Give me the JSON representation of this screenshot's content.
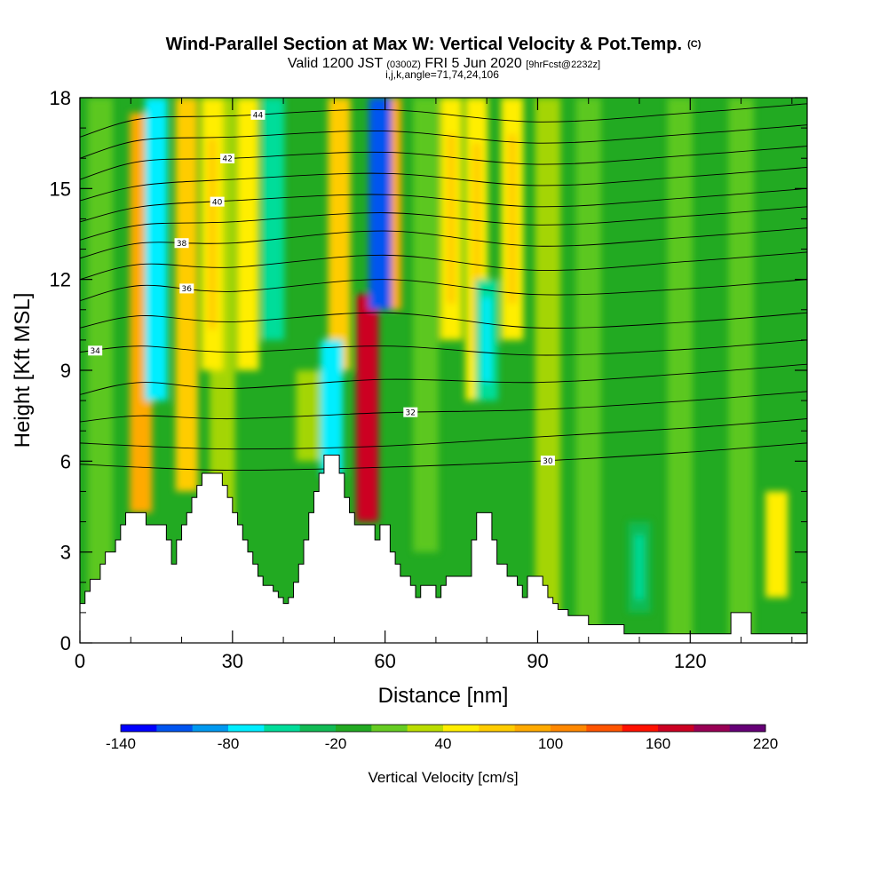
{
  "chart_data": {
    "type": "heatmap",
    "title": "Wind-Parallel Section at Max W: Vertical Velocity & Pot.Temp.",
    "title_suffix": "(C)",
    "subtitle": {
      "valid": "Valid 1200 JST",
      "utc": "(0300Z)",
      "date": "FRI 5 Jun 2020",
      "forecast": "[9hrFcst@2232z]"
    },
    "subtitle2": "i,j,k,angle=71,74,24,106",
    "xlabel": "Distance [nm]",
    "ylabel": "Height [Kft MSL]",
    "xlim": [
      0,
      143
    ],
    "ylim": [
      0,
      18
    ],
    "x_ticks": [
      0,
      30,
      60,
      90,
      120
    ],
    "y_ticks": [
      0,
      3,
      6,
      9,
      12,
      15,
      18
    ],
    "colorbar": {
      "title": "Vertical Velocity [cm/s]",
      "min": -140,
      "max": 220,
      "tick_labels": [
        "-140",
        "-80",
        "-20",
        "40",
        "100",
        "160",
        "220"
      ],
      "colors": [
        "#0000ff",
        "#0055f0",
        "#0099f0",
        "#00eeff",
        "#00dd9a",
        "#11bb55",
        "#22aa22",
        "#66cc22",
        "#bbdd00",
        "#ffee00",
        "#ffcc00",
        "#ffaa00",
        "#ff8800",
        "#ff5500",
        "#ff1100",
        "#cc0022",
        "#990055",
        "#660077"
      ]
    },
    "updrafts": [
      {
        "x": 12,
        "z_bottom": 4.3,
        "z_top": 17.5,
        "w": 90
      },
      {
        "x": 21,
        "z_bottom": 5.0,
        "z_top": 18.0,
        "w": 60
      },
      {
        "x": 26,
        "z_bottom": 9.0,
        "z_top": 18.0,
        "w": 50
      },
      {
        "x": 33,
        "z_bottom": 9.0,
        "z_top": 18.0,
        "w": 45
      },
      {
        "x": 51,
        "z_bottom": 9.0,
        "z_top": 18.0,
        "w": 70
      },
      {
        "x": 56.5,
        "z_bottom": 4.0,
        "z_top": 11.5,
        "w": 170
      },
      {
        "x": 61,
        "z_bottom": 11.0,
        "z_top": 18.0,
        "w": 85
      },
      {
        "x": 73,
        "z_bottom": 10.0,
        "z_top": 18.0,
        "w": 55
      },
      {
        "x": 78,
        "z_bottom": 8.0,
        "z_top": 18.0,
        "w": 50
      },
      {
        "x": 85,
        "z_bottom": 10.0,
        "z_top": 18.0,
        "w": 50
      },
      {
        "x": 137,
        "z_bottom": 1.5,
        "z_top": 5.0,
        "w": 45
      }
    ],
    "downdrafts": [
      {
        "x": 15,
        "z_bottom": 8.0,
        "z_top": 18.0,
        "w": -70
      },
      {
        "x": 38,
        "z_bottom": 10.0,
        "z_top": 18.0,
        "w": -50
      },
      {
        "x": 49.5,
        "z_bottom": 5.5,
        "z_top": 10.0,
        "w": -65
      },
      {
        "x": 59,
        "z_bottom": 11.0,
        "z_top": 18.0,
        "w": -110
      },
      {
        "x": 80,
        "z_bottom": 8.0,
        "z_top": 12.0,
        "w": -60
      },
      {
        "x": 110,
        "z_bottom": 1.0,
        "z_top": 4.0,
        "w": -40
      }
    ],
    "terrain": [
      {
        "x": 0,
        "z": 1.3
      },
      {
        "x": 1,
        "z": 1.7
      },
      {
        "x": 2,
        "z": 2.1
      },
      {
        "x": 4,
        "z": 2.6
      },
      {
        "x": 5,
        "z": 3.0
      },
      {
        "x": 7,
        "z": 3.4
      },
      {
        "x": 8,
        "z": 3.9
      },
      {
        "x": 9,
        "z": 4.3
      },
      {
        "x": 12,
        "z": 4.3
      },
      {
        "x": 13,
        "z": 3.9
      },
      {
        "x": 15,
        "z": 3.9
      },
      {
        "x": 17,
        "z": 3.4
      },
      {
        "x": 18,
        "z": 2.6
      },
      {
        "x": 19,
        "z": 3.4
      },
      {
        "x": 20,
        "z": 3.9
      },
      {
        "x": 21,
        "z": 4.3
      },
      {
        "x": 22,
        "z": 4.8
      },
      {
        "x": 23,
        "z": 5.2
      },
      {
        "x": 24,
        "z": 5.6
      },
      {
        "x": 27,
        "z": 5.6
      },
      {
        "x": 28,
        "z": 5.2
      },
      {
        "x": 29,
        "z": 4.8
      },
      {
        "x": 30,
        "z": 4.3
      },
      {
        "x": 31,
        "z": 3.9
      },
      {
        "x": 32,
        "z": 3.4
      },
      {
        "x": 33,
        "z": 3.0
      },
      {
        "x": 34,
        "z": 2.6
      },
      {
        "x": 35,
        "z": 2.2
      },
      {
        "x": 36,
        "z": 1.9
      },
      {
        "x": 38,
        "z": 1.7
      },
      {
        "x": 39,
        "z": 1.5
      },
      {
        "x": 40,
        "z": 1.3
      },
      {
        "x": 41,
        "z": 1.5
      },
      {
        "x": 42,
        "z": 2.0
      },
      {
        "x": 43,
        "z": 2.6
      },
      {
        "x": 44,
        "z": 3.4
      },
      {
        "x": 45,
        "z": 4.3
      },
      {
        "x": 46,
        "z": 5.0
      },
      {
        "x": 47,
        "z": 5.6
      },
      {
        "x": 48,
        "z": 6.2
      },
      {
        "x": 50,
        "z": 6.2
      },
      {
        "x": 51,
        "z": 5.6
      },
      {
        "x": 52,
        "z": 4.8
      },
      {
        "x": 53,
        "z": 4.3
      },
      {
        "x": 54,
        "z": 3.9
      },
      {
        "x": 56,
        "z": 3.9
      },
      {
        "x": 58,
        "z": 3.4
      },
      {
        "x": 59,
        "z": 3.9
      },
      {
        "x": 61,
        "z": 3.0
      },
      {
        "x": 62,
        "z": 2.6
      },
      {
        "x": 63,
        "z": 2.2
      },
      {
        "x": 65,
        "z": 1.9
      },
      {
        "x": 66,
        "z": 1.5
      },
      {
        "x": 67,
        "z": 1.9
      },
      {
        "x": 70,
        "z": 1.5
      },
      {
        "x": 71,
        "z": 1.9
      },
      {
        "x": 72,
        "z": 2.2
      },
      {
        "x": 74,
        "z": 2.2
      },
      {
        "x": 77,
        "z": 3.4
      },
      {
        "x": 78,
        "z": 4.3
      },
      {
        "x": 80,
        "z": 4.3
      },
      {
        "x": 81,
        "z": 3.4
      },
      {
        "x": 82,
        "z": 2.6
      },
      {
        "x": 84,
        "z": 2.2
      },
      {
        "x": 86,
        "z": 1.9
      },
      {
        "x": 87,
        "z": 1.5
      },
      {
        "x": 88,
        "z": 2.2
      },
      {
        "x": 90,
        "z": 2.2
      },
      {
        "x": 91,
        "z": 1.9
      },
      {
        "x": 92,
        "z": 1.5
      },
      {
        "x": 93,
        "z": 1.3
      },
      {
        "x": 94,
        "z": 1.1
      },
      {
        "x": 96,
        "z": 0.9
      },
      {
        "x": 100,
        "z": 0.6
      },
      {
        "x": 105,
        "z": 0.6
      },
      {
        "x": 107,
        "z": 0.3
      },
      {
        "x": 127,
        "z": 0.3
      },
      {
        "x": 128,
        "z": 1.0
      },
      {
        "x": 131,
        "z": 1.0
      },
      {
        "x": 132,
        "z": 0.3
      },
      {
        "x": 143,
        "z": 0.3
      }
    ],
    "theta_contours": [
      {
        "theta": 30,
        "label": "30",
        "label_x": 92,
        "pts": [
          {
            "x": 0,
            "z": 5.9
          },
          {
            "x": 12,
            "z": 5.8
          },
          {
            "x": 30,
            "z": 5.7
          },
          {
            "x": 60,
            "z": 5.8
          },
          {
            "x": 90,
            "z": 6.0
          },
          {
            "x": 120,
            "z": 6.3
          },
          {
            "x": 143,
            "z": 6.6
          }
        ]
      },
      {
        "x": 0,
        "theta": 31,
        "label": "",
        "label_x": 0,
        "pts": [
          {
            "x": 0,
            "z": 6.6
          },
          {
            "x": 12,
            "z": 6.5
          },
          {
            "x": 30,
            "z": 6.4
          },
          {
            "x": 60,
            "z": 6.5
          },
          {
            "x": 90,
            "z": 6.8
          },
          {
            "x": 120,
            "z": 7.1
          },
          {
            "x": 143,
            "z": 7.4
          }
        ]
      },
      {
        "theta": 32,
        "label": "32",
        "label_x": 65,
        "pts": [
          {
            "x": 0,
            "z": 7.3
          },
          {
            "x": 12,
            "z": 7.5
          },
          {
            "x": 30,
            "z": 7.4
          },
          {
            "x": 60,
            "z": 7.6
          },
          {
            "x": 90,
            "z": 7.7
          },
          {
            "x": 120,
            "z": 8.0
          },
          {
            "x": 143,
            "z": 8.3
          }
        ]
      },
      {
        "theta": 33,
        "label": "",
        "label_x": 0,
        "pts": [
          {
            "x": 0,
            "z": 8.2
          },
          {
            "x": 12,
            "z": 8.6
          },
          {
            "x": 30,
            "z": 8.4
          },
          {
            "x": 60,
            "z": 8.7
          },
          {
            "x": 90,
            "z": 8.6
          },
          {
            "x": 120,
            "z": 8.9
          },
          {
            "x": 143,
            "z": 9.2
          }
        ]
      },
      {
        "theta": 34,
        "label": "34",
        "label_x": 3,
        "pts": [
          {
            "x": 0,
            "z": 9.6
          },
          {
            "x": 12,
            "z": 9.8
          },
          {
            "x": 30,
            "z": 9.6
          },
          {
            "x": 60,
            "z": 9.8
          },
          {
            "x": 90,
            "z": 9.5
          },
          {
            "x": 120,
            "z": 9.7
          },
          {
            "x": 143,
            "z": 10.0
          }
        ]
      },
      {
        "theta": 35,
        "label": "",
        "label_x": 0,
        "pts": [
          {
            "x": 0,
            "z": 10.4
          },
          {
            "x": 12,
            "z": 10.8
          },
          {
            "x": 30,
            "z": 10.6
          },
          {
            "x": 60,
            "z": 10.9
          },
          {
            "x": 90,
            "z": 10.4
          },
          {
            "x": 120,
            "z": 10.6
          },
          {
            "x": 143,
            "z": 10.9
          }
        ]
      },
      {
        "theta": 36,
        "label": "36",
        "label_x": 21,
        "pts": [
          {
            "x": 0,
            "z": 11.3
          },
          {
            "x": 12,
            "z": 11.8
          },
          {
            "x": 30,
            "z": 11.6
          },
          {
            "x": 60,
            "z": 12.0
          },
          {
            "x": 90,
            "z": 11.5
          },
          {
            "x": 120,
            "z": 11.7
          },
          {
            "x": 143,
            "z": 12.0
          }
        ]
      },
      {
        "theta": 37,
        "label": "",
        "label_x": 0,
        "pts": [
          {
            "x": 0,
            "z": 12.0
          },
          {
            "x": 12,
            "z": 12.5
          },
          {
            "x": 30,
            "z": 12.4
          },
          {
            "x": 60,
            "z": 12.8
          },
          {
            "x": 90,
            "z": 12.3
          },
          {
            "x": 120,
            "z": 12.6
          },
          {
            "x": 143,
            "z": 12.9
          }
        ]
      },
      {
        "theta": 38,
        "label": "38",
        "label_x": 20,
        "pts": [
          {
            "x": 0,
            "z": 12.7
          },
          {
            "x": 12,
            "z": 13.2
          },
          {
            "x": 30,
            "z": 13.2
          },
          {
            "x": 60,
            "z": 13.6
          },
          {
            "x": 90,
            "z": 13.1
          },
          {
            "x": 120,
            "z": 13.4
          },
          {
            "x": 143,
            "z": 13.7
          }
        ]
      },
      {
        "theta": 39,
        "label": "",
        "label_x": 0,
        "pts": [
          {
            "x": 0,
            "z": 13.3
          },
          {
            "x": 12,
            "z": 13.8
          },
          {
            "x": 30,
            "z": 13.9
          },
          {
            "x": 60,
            "z": 14.2
          },
          {
            "x": 90,
            "z": 13.8
          },
          {
            "x": 120,
            "z": 14.1
          },
          {
            "x": 143,
            "z": 14.4
          }
        ]
      },
      {
        "theta": 40,
        "label": "40",
        "label_x": 27,
        "pts": [
          {
            "x": 0,
            "z": 13.9
          },
          {
            "x": 12,
            "z": 14.4
          },
          {
            "x": 30,
            "z": 14.6
          },
          {
            "x": 60,
            "z": 14.8
          },
          {
            "x": 90,
            "z": 14.4
          },
          {
            "x": 120,
            "z": 14.7
          },
          {
            "x": 143,
            "z": 15.0
          }
        ]
      },
      {
        "theta": 41,
        "label": "",
        "label_x": 0,
        "pts": [
          {
            "x": 0,
            "z": 14.6
          },
          {
            "x": 12,
            "z": 15.1
          },
          {
            "x": 30,
            "z": 15.3
          },
          {
            "x": 60,
            "z": 15.5
          },
          {
            "x": 90,
            "z": 15.1
          },
          {
            "x": 120,
            "z": 15.4
          },
          {
            "x": 143,
            "z": 15.7
          }
        ]
      },
      {
        "theta": 42,
        "label": "42",
        "label_x": 29,
        "pts": [
          {
            "x": 0,
            "z": 15.3
          },
          {
            "x": 12,
            "z": 15.9
          },
          {
            "x": 30,
            "z": 16.0
          },
          {
            "x": 60,
            "z": 16.2
          },
          {
            "x": 90,
            "z": 15.8
          },
          {
            "x": 120,
            "z": 16.1
          },
          {
            "x": 143,
            "z": 16.4
          }
        ]
      },
      {
        "theta": 43,
        "label": "",
        "label_x": 0,
        "pts": [
          {
            "x": 0,
            "z": 16.0
          },
          {
            "x": 12,
            "z": 16.6
          },
          {
            "x": 30,
            "z": 16.7
          },
          {
            "x": 60,
            "z": 16.9
          },
          {
            "x": 90,
            "z": 16.5
          },
          {
            "x": 120,
            "z": 16.8
          },
          {
            "x": 143,
            "z": 17.1
          }
        ]
      },
      {
        "theta": 44,
        "label": "44",
        "label_x": 35,
        "pts": [
          {
            "x": 0,
            "z": 16.7
          },
          {
            "x": 12,
            "z": 17.3
          },
          {
            "x": 30,
            "z": 17.4
          },
          {
            "x": 60,
            "z": 17.6
          },
          {
            "x": 90,
            "z": 17.2
          },
          {
            "x": 120,
            "z": 17.5
          },
          {
            "x": 143,
            "z": 17.8
          }
        ]
      }
    ],
    "grid": false,
    "legend": "bottom"
  }
}
